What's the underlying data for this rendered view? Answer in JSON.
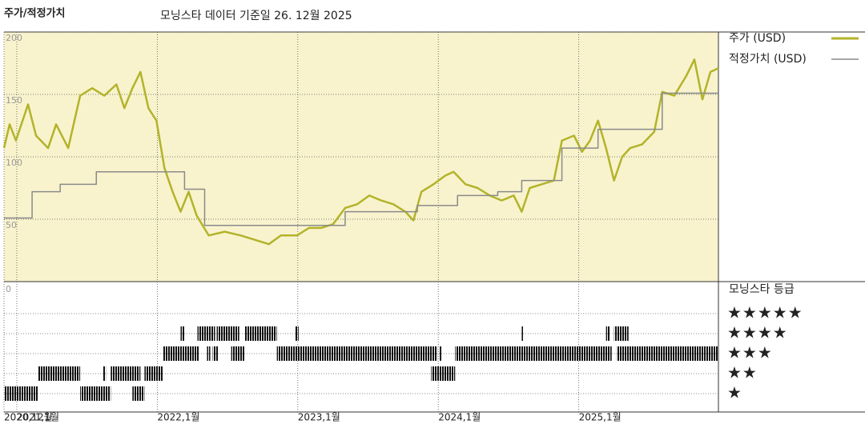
{
  "chart_data": {
    "type": "line",
    "title": "주가/적정가치",
    "subtitle": "모닝스타 데이터 기준일 26. 12월 2025",
    "xlim": [
      2020.909,
      2025.994
    ],
    "xticks": [
      {
        "value": 2020.909,
        "label": "2020,12월"
      },
      {
        "value": 2021,
        "label": "2021,1월"
      },
      {
        "value": 2022,
        "label": "2022,1월"
      },
      {
        "value": 2023,
        "label": "2023,1월"
      },
      {
        "value": 2024,
        "label": "2024,1월"
      },
      {
        "value": 2025,
        "label": "2025,1월"
      }
    ],
    "ylim": [
      0,
      200
    ],
    "yticks": [
      50,
      100,
      150,
      200
    ],
    "grid": true,
    "series": [
      {
        "name": "주가 (USD)",
        "color": "#b3b32a",
        "x": [
          2020.909,
          2020.949,
          2020.994,
          2021.08,
          2021.137,
          2021.223,
          2021.28,
          2021.366,
          2021.451,
          2021.537,
          2021.623,
          2021.709,
          2021.766,
          2021.823,
          2021.88,
          2021.937,
          2021.994,
          2022.051,
          2022.109,
          2022.166,
          2022.223,
          2022.28,
          2022.366,
          2022.48,
          2022.594,
          2022.709,
          2022.794,
          2022.88,
          2022.994,
          2023.08,
          2023.166,
          2023.251,
          2023.337,
          2023.423,
          2023.509,
          2023.594,
          2023.68,
          2023.766,
          2023.823,
          2023.88,
          2023.966,
          2024.051,
          2024.109,
          2024.194,
          2024.28,
          2024.366,
          2024.451,
          2024.537,
          2024.594,
          2024.651,
          2024.737,
          2024.823,
          2024.88,
          2024.966,
          2025.023,
          2025.08,
          2025.137,
          2025.194,
          2025.251,
          2025.309,
          2025.366,
          2025.451,
          2025.537,
          2025.594,
          2025.68,
          2025.766,
          2025.823,
          2025.88,
          2025.937,
          2025.994
        ],
        "values": [
          107,
          126,
          113,
          142,
          117,
          107,
          126,
          107,
          149,
          155,
          149,
          158,
          139,
          155,
          168,
          139,
          129,
          91,
          72,
          56,
          72,
          53,
          37,
          40,
          37,
          33,
          30,
          37,
          37,
          43,
          43,
          46,
          59,
          62,
          69,
          65,
          62,
          56,
          49,
          72,
          78,
          85,
          88,
          78,
          75,
          69,
          65,
          69,
          56,
          75,
          78,
          81,
          113,
          117,
          104,
          113,
          129,
          107,
          81,
          100,
          107,
          110,
          120,
          152,
          149,
          165,
          178,
          146,
          168,
          171
        ]
      },
      {
        "name": "적정가치 (USD)",
        "color": "#8a8a8a",
        "step": "post",
        "x": [
          2020.909,
          2021.109,
          2021.309,
          2021.566,
          2022.194,
          2022.337,
          2023.337,
          2023.851,
          2024.137,
          2024.423,
          2024.594,
          2024.88,
          2025.137,
          2025.594
        ],
        "values": [
          51,
          72,
          78,
          88,
          74,
          45,
          56,
          61,
          69,
          72,
          81,
          107,
          122,
          151
        ]
      }
    ],
    "legend": "right",
    "rating_title": "모닝스타 등급",
    "rating_yticks": [
      0
    ],
    "rating_labels": [
      "★",
      "★★",
      "★★★",
      "★★★★",
      "★★★★★"
    ],
    "ratings": [
      {
        "start": 2020.909,
        "end": 2021.154,
        "stars": 1
      },
      {
        "start": 2021.451,
        "end": 2021.669,
        "stars": 1
      },
      {
        "start": 2021.823,
        "end": 2021.909,
        "stars": 1
      },
      {
        "start": 2021.154,
        "end": 2021.451,
        "stars": 2
      },
      {
        "start": 2021.611,
        "end": 2021.634,
        "stars": 2
      },
      {
        "start": 2021.669,
        "end": 2021.88,
        "stars": 2
      },
      {
        "start": 2021.909,
        "end": 2022.04,
        "stars": 2
      },
      {
        "start": 2023.949,
        "end": 2024.12,
        "stars": 2
      },
      {
        "start": 2022.04,
        "end": 2022.297,
        "stars": 3
      },
      {
        "start": 2022.354,
        "end": 2022.377,
        "stars": 3
      },
      {
        "start": 2022.394,
        "end": 2022.434,
        "stars": 3
      },
      {
        "start": 2022.526,
        "end": 2022.623,
        "stars": 3
      },
      {
        "start": 2022.851,
        "end": 2023.994,
        "stars": 3
      },
      {
        "start": 2024.011,
        "end": 2024.023,
        "stars": 3
      },
      {
        "start": 2024.12,
        "end": 2025.234,
        "stars": 3
      },
      {
        "start": 2025.269,
        "end": 2025.994,
        "stars": 3
      },
      {
        "start": 2022.166,
        "end": 2022.194,
        "stars": 4
      },
      {
        "start": 2022.286,
        "end": 2022.411,
        "stars": 4
      },
      {
        "start": 2022.423,
        "end": 2022.583,
        "stars": 4
      },
      {
        "start": 2022.623,
        "end": 2022.851,
        "stars": 4
      },
      {
        "start": 2022.983,
        "end": 2023.006,
        "stars": 4
      },
      {
        "start": 2024.594,
        "end": 2024.606,
        "stars": 4
      },
      {
        "start": 2025.194,
        "end": 2025.223,
        "stars": 4
      },
      {
        "start": 2025.251,
        "end": 2025.354,
        "stars": 4
      }
    ]
  }
}
